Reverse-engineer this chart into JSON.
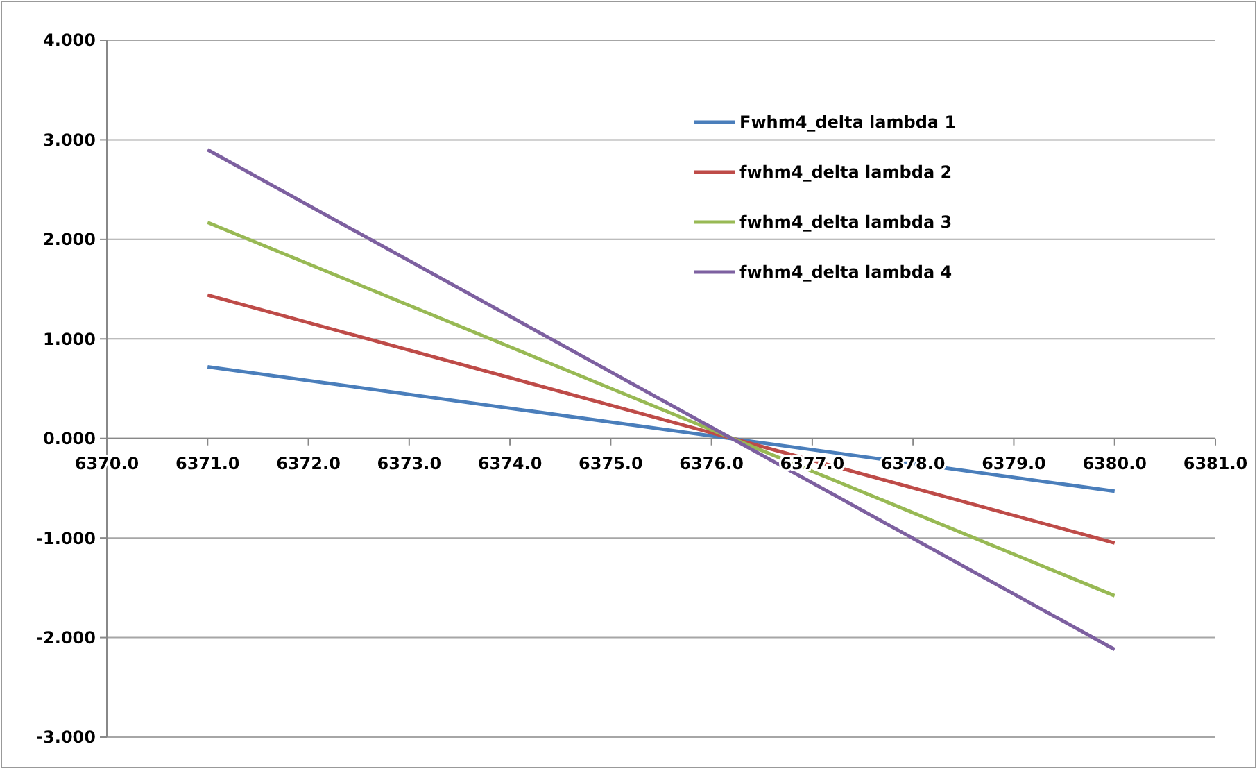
{
  "chart_data": {
    "type": "line",
    "x": [
      6371,
      6380
    ],
    "series": [
      {
        "name": "Fwhm4_delta lambda 1",
        "color": "#4a7ebb",
        "values": [
          0.72,
          -0.53
        ]
      },
      {
        "name": "fwhm4_delta lambda 2",
        "color": "#be4b48",
        "values": [
          1.44,
          -1.05
        ]
      },
      {
        "name": "fwhm4_delta lambda 3",
        "color": "#98b954",
        "values": [
          2.17,
          -1.58
        ]
      },
      {
        "name": "fwhm4_delta lambda 4",
        "color": "#7d60a0",
        "values": [
          2.9,
          -2.12
        ]
      }
    ],
    "xlim": [
      6370,
      6381
    ],
    "xticks": [
      {
        "value": 6370,
        "label": "6370.0"
      },
      {
        "value": 6371,
        "label": "6371.0"
      },
      {
        "value": 6372,
        "label": "6372.0"
      },
      {
        "value": 6373,
        "label": "6373.0"
      },
      {
        "value": 6374,
        "label": "6374.0"
      },
      {
        "value": 6375,
        "label": "6375.0"
      },
      {
        "value": 6376,
        "label": "6376.0"
      },
      {
        "value": 6377,
        "label": "6377.0"
      },
      {
        "value": 6378,
        "label": "6378.0"
      },
      {
        "value": 6379,
        "label": "6379.0"
      },
      {
        "value": 6380,
        "label": "6380.0"
      },
      {
        "value": 6381,
        "label": "6381.0"
      }
    ],
    "ylim": [
      -3,
      4
    ],
    "yticks": [
      {
        "value": -3,
        "label": "-3.000"
      },
      {
        "value": -2,
        "label": "-2.000"
      },
      {
        "value": -1,
        "label": "-1.000"
      },
      {
        "value": 0,
        "label": "0.000"
      },
      {
        "value": 1,
        "label": "1.000"
      },
      {
        "value": 2,
        "label": "2.000"
      },
      {
        "value": 3,
        "label": "3.000"
      },
      {
        "value": 4,
        "label": "4.000"
      }
    ],
    "grid": "y",
    "legend": "top right",
    "marker": "none",
    "line_style": "solid"
  }
}
